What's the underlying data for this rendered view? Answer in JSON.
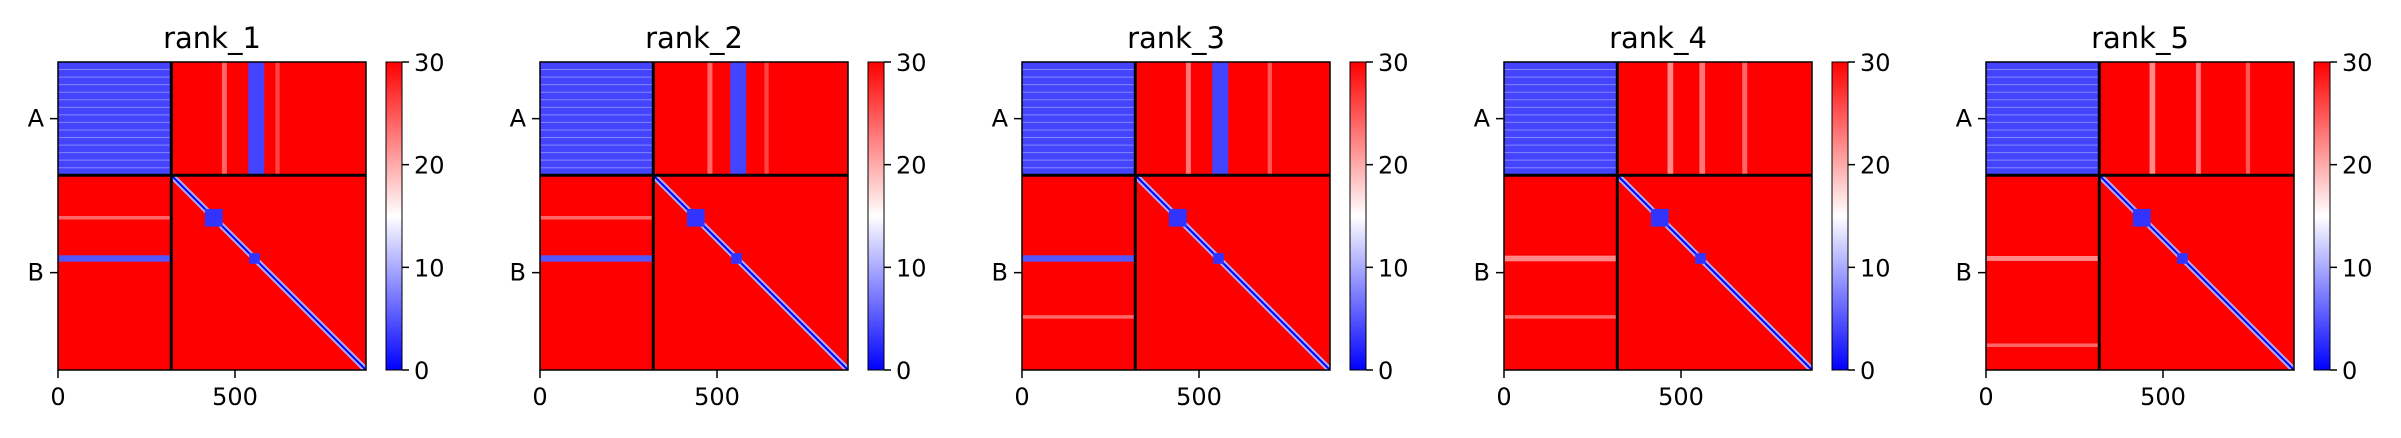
{
  "figure": {
    "cmap": {
      "low": "#0000ff",
      "mid": "#ffffff",
      "high": "#ff0000"
    }
  },
  "chart_data": [
    {
      "type": "heatmap",
      "title": "rank_1",
      "xlim": [
        0,
        870
      ],
      "ylim": [
        0,
        870
      ],
      "x_ticks": [
        0,
        500
      ],
      "x_tick_labels": [
        "0",
        "500"
      ],
      "chain_labels": [
        "A",
        "B"
      ],
      "chain_boundary": 320,
      "colorbar": {
        "range": [
          0,
          30
        ],
        "ticks": [
          0,
          10,
          20,
          30
        ],
        "tick_labels": [
          "0",
          "10",
          "20",
          "30"
        ]
      },
      "blocks": {
        "AA": 4,
        "AB": 30,
        "BA": 30,
        "BB": 30
      },
      "features": [
        {
          "kind": "diagonal",
          "from": 320,
          "to": 870,
          "value": 0
        },
        {
          "kind": "square",
          "center": 440,
          "size": 50,
          "value": 3
        },
        {
          "kind": "square",
          "center": 555,
          "size": 30,
          "value": 3
        },
        {
          "kind": "vstripe",
          "x": 560,
          "width": 45,
          "y0": 0,
          "y1": 320,
          "value": 4
        },
        {
          "kind": "vstripe",
          "x": 470,
          "width": 14,
          "y0": 0,
          "y1": 320,
          "value": 24
        },
        {
          "kind": "vstripe",
          "x": 620,
          "width": 12,
          "y0": 0,
          "y1": 320,
          "value": 26
        },
        {
          "kind": "hstripe",
          "y": 555,
          "height": 18,
          "x0": 0,
          "x1": 320,
          "value": 5
        },
        {
          "kind": "hstripe",
          "y": 440,
          "height": 10,
          "x0": 0,
          "x1": 320,
          "value": 24
        }
      ]
    },
    {
      "type": "heatmap",
      "title": "rank_2",
      "xlim": [
        0,
        870
      ],
      "ylim": [
        0,
        870
      ],
      "x_ticks": [
        0,
        500
      ],
      "x_tick_labels": [
        "0",
        "500"
      ],
      "chain_labels": [
        "A",
        "B"
      ],
      "chain_boundary": 320,
      "colorbar": {
        "range": [
          0,
          30
        ],
        "ticks": [
          0,
          10,
          20,
          30
        ],
        "tick_labels": [
          "0",
          "10",
          "20",
          "30"
        ]
      },
      "blocks": {
        "AA": 4,
        "AB": 30,
        "BA": 30,
        "BB": 30
      },
      "features": [
        {
          "kind": "diagonal",
          "from": 320,
          "to": 870,
          "value": 0
        },
        {
          "kind": "square",
          "center": 440,
          "size": 50,
          "value": 3
        },
        {
          "kind": "square",
          "center": 555,
          "size": 30,
          "value": 3
        },
        {
          "kind": "vstripe",
          "x": 560,
          "width": 45,
          "y0": 0,
          "y1": 320,
          "value": 4
        },
        {
          "kind": "vstripe",
          "x": 480,
          "width": 14,
          "y0": 0,
          "y1": 320,
          "value": 24
        },
        {
          "kind": "vstripe",
          "x": 640,
          "width": 12,
          "y0": 0,
          "y1": 320,
          "value": 26
        },
        {
          "kind": "hstripe",
          "y": 555,
          "height": 18,
          "x0": 0,
          "x1": 320,
          "value": 5
        },
        {
          "kind": "hstripe",
          "y": 440,
          "height": 10,
          "x0": 0,
          "x1": 320,
          "value": 24
        }
      ]
    },
    {
      "type": "heatmap",
      "title": "rank_3",
      "xlim": [
        0,
        870
      ],
      "ylim": [
        0,
        870
      ],
      "x_ticks": [
        0,
        500
      ],
      "x_tick_labels": [
        "0",
        "500"
      ],
      "chain_labels": [
        "A",
        "B"
      ],
      "chain_boundary": 320,
      "colorbar": {
        "range": [
          0,
          30
        ],
        "ticks": [
          0,
          10,
          20,
          30
        ],
        "tick_labels": [
          "0",
          "10",
          "20",
          "30"
        ]
      },
      "blocks": {
        "AA": 4,
        "AB": 30,
        "BA": 30,
        "BB": 30
      },
      "features": [
        {
          "kind": "diagonal",
          "from": 320,
          "to": 870,
          "value": 0
        },
        {
          "kind": "square",
          "center": 440,
          "size": 50,
          "value": 3
        },
        {
          "kind": "square",
          "center": 555,
          "size": 30,
          "value": 3
        },
        {
          "kind": "vstripe",
          "x": 560,
          "width": 45,
          "y0": 0,
          "y1": 320,
          "value": 4
        },
        {
          "kind": "vstripe",
          "x": 470,
          "width": 14,
          "y0": 0,
          "y1": 320,
          "value": 23
        },
        {
          "kind": "vstripe",
          "x": 700,
          "width": 12,
          "y0": 0,
          "y1": 320,
          "value": 25
        },
        {
          "kind": "hstripe",
          "y": 555,
          "height": 18,
          "x0": 0,
          "x1": 320,
          "value": 5
        },
        {
          "kind": "hstripe",
          "y": 720,
          "height": 10,
          "x0": 0,
          "x1": 320,
          "value": 24
        }
      ]
    },
    {
      "type": "heatmap",
      "title": "rank_4",
      "xlim": [
        0,
        870
      ],
      "ylim": [
        0,
        870
      ],
      "x_ticks": [
        0,
        500
      ],
      "x_tick_labels": [
        "0",
        "500"
      ],
      "chain_labels": [
        "A",
        "B"
      ],
      "chain_boundary": 320,
      "colorbar": {
        "range": [
          0,
          30
        ],
        "ticks": [
          0,
          10,
          20,
          30
        ],
        "tick_labels": [
          "0",
          "10",
          "20",
          "30"
        ]
      },
      "blocks": {
        "AA": 4,
        "AB": 30,
        "BA": 30,
        "BB": 30
      },
      "features": [
        {
          "kind": "diagonal",
          "from": 320,
          "to": 870,
          "value": 0
        },
        {
          "kind": "square",
          "center": 440,
          "size": 50,
          "value": 3
        },
        {
          "kind": "square",
          "center": 555,
          "size": 30,
          "value": 3
        },
        {
          "kind": "vstripe",
          "x": 470,
          "width": 16,
          "y0": 0,
          "y1": 320,
          "value": 22
        },
        {
          "kind": "vstripe",
          "x": 560,
          "width": 16,
          "y0": 0,
          "y1": 320,
          "value": 23
        },
        {
          "kind": "vstripe",
          "x": 680,
          "width": 14,
          "y0": 0,
          "y1": 320,
          "value": 24
        },
        {
          "kind": "hstripe",
          "y": 555,
          "height": 16,
          "x0": 0,
          "x1": 320,
          "value": 22
        },
        {
          "kind": "hstripe",
          "y": 720,
          "height": 10,
          "x0": 0,
          "x1": 320,
          "value": 24
        }
      ]
    },
    {
      "type": "heatmap",
      "title": "rank_5",
      "xlim": [
        0,
        870
      ],
      "ylim": [
        0,
        870
      ],
      "x_ticks": [
        0,
        500
      ],
      "x_tick_labels": [
        "0",
        "500"
      ],
      "chain_labels": [
        "A",
        "B"
      ],
      "chain_boundary": 320,
      "colorbar": {
        "range": [
          0,
          30
        ],
        "ticks": [
          0,
          10,
          20,
          30
        ],
        "tick_labels": [
          "0",
          "10",
          "20",
          "30"
        ]
      },
      "blocks": {
        "AA": 4,
        "AB": 30,
        "BA": 30,
        "BB": 30
      },
      "features": [
        {
          "kind": "diagonal",
          "from": 320,
          "to": 870,
          "value": 0
        },
        {
          "kind": "square",
          "center": 440,
          "size": 50,
          "value": 3
        },
        {
          "kind": "square",
          "center": 555,
          "size": 30,
          "value": 3
        },
        {
          "kind": "vstripe",
          "x": 470,
          "width": 16,
          "y0": 0,
          "y1": 320,
          "value": 22
        },
        {
          "kind": "vstripe",
          "x": 600,
          "width": 14,
          "y0": 0,
          "y1": 320,
          "value": 23
        },
        {
          "kind": "vstripe",
          "x": 740,
          "width": 12,
          "y0": 0,
          "y1": 320,
          "value": 25
        },
        {
          "kind": "hstripe",
          "y": 555,
          "height": 14,
          "x0": 0,
          "x1": 320,
          "value": 22
        },
        {
          "kind": "hstripe",
          "y": 800,
          "height": 10,
          "x0": 0,
          "x1": 320,
          "value": 24
        }
      ]
    }
  ]
}
